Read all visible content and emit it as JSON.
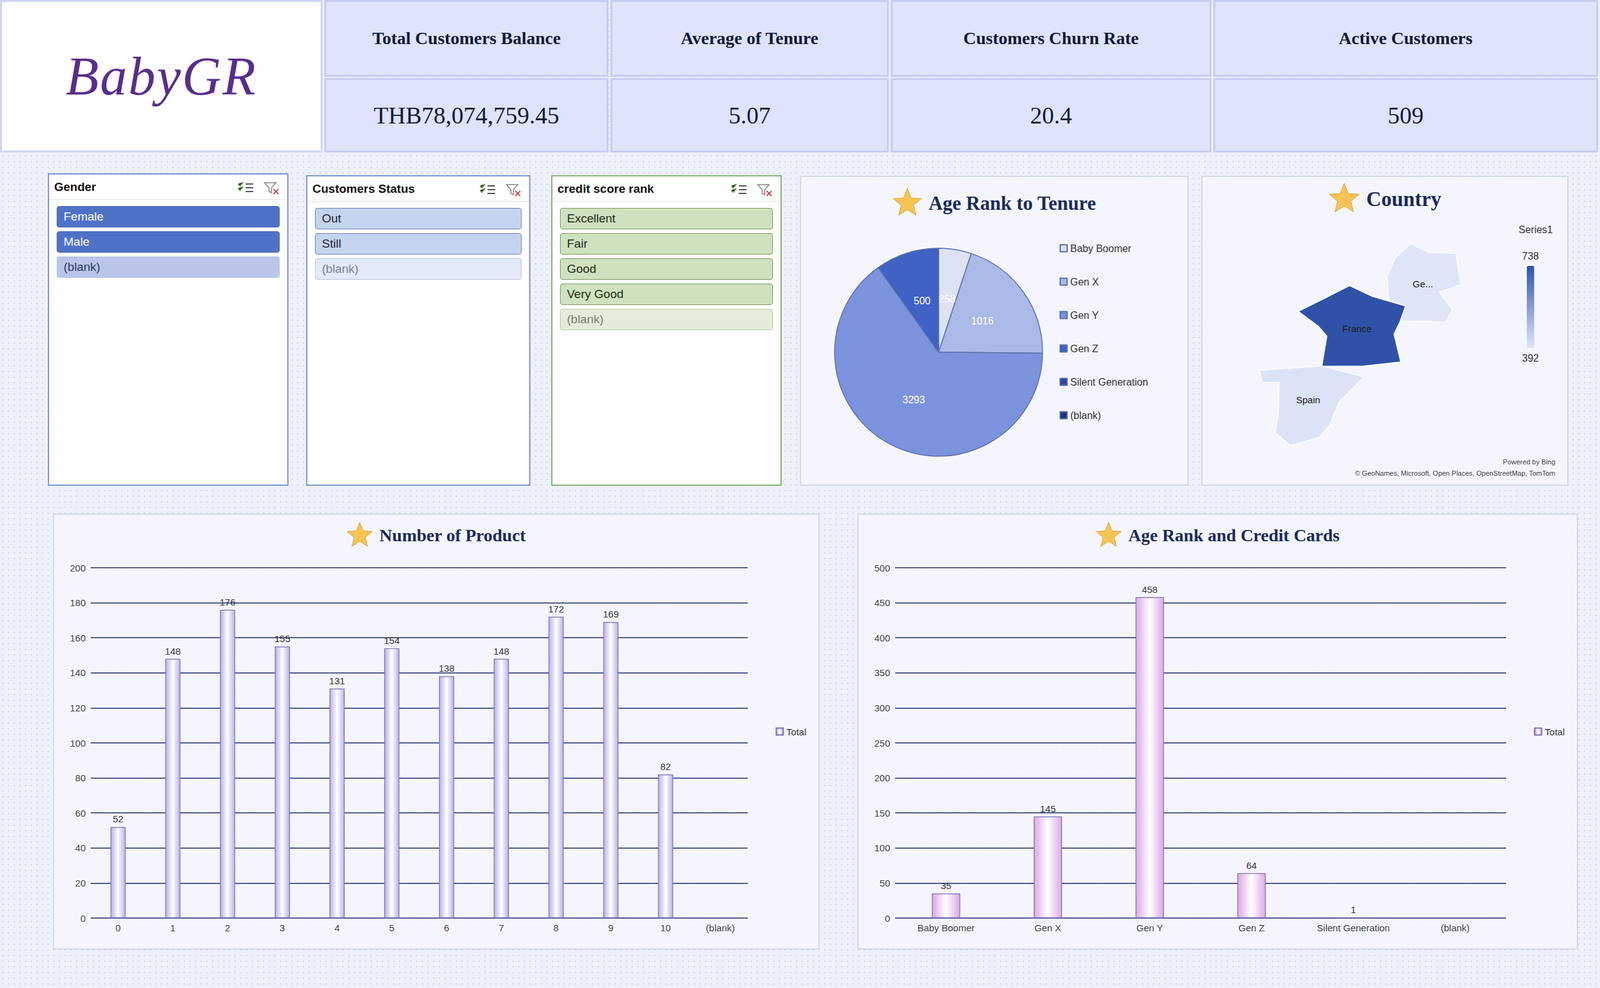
{
  "header": {
    "logo": "BabyGR"
  },
  "kpis": [
    {
      "title": "Total Customers Balance",
      "value": "THB78,074,759.45"
    },
    {
      "title": "Average of Tenure",
      "value": "5.07"
    },
    {
      "title": "Customers Churn Rate",
      "value": "20.4"
    },
    {
      "title": "Active Customers",
      "value": "509"
    }
  ],
  "slicers": [
    {
      "title": "Gender",
      "style": "blue",
      "items": [
        {
          "label": "Female",
          "selected": true
        },
        {
          "label": "Male",
          "selected": true
        },
        {
          "label": "(blank)",
          "selected": false
        }
      ]
    },
    {
      "title": "Customers Status",
      "style": "lightblue",
      "items": [
        {
          "label": "Out",
          "selected": true
        },
        {
          "label": "Still",
          "selected": true
        },
        {
          "label": "(blank)",
          "selected": false
        }
      ]
    },
    {
      "title": "credit score rank",
      "style": "green",
      "items": [
        {
          "label": "Excellent",
          "selected": true
        },
        {
          "label": "Fair",
          "selected": true
        },
        {
          "label": "Good",
          "selected": true
        },
        {
          "label": "Very Good",
          "selected": true
        },
        {
          "label": "(blank)",
          "selected": false
        }
      ]
    }
  ],
  "chart_data": [
    {
      "type": "pie",
      "title": "Age Rank to Tenure",
      "categories": [
        "Baby Boomer",
        "Gen X",
        "Gen Y",
        "Gen Z",
        "Silent Generation",
        "(blank)"
      ],
      "values": [
        258,
        1016,
        3293,
        500,
        null,
        null
      ],
      "colors": [
        "#dde2f5",
        "#aab9e6",
        "#7b92dc",
        "#3f62c4",
        "#2c4aa3",
        "#1c3480"
      ],
      "legend": "right",
      "data_labels": true
    },
    {
      "type": "map",
      "title": "Country",
      "legend_title": "Series1",
      "regions": [
        "France",
        "Ge...",
        "Spain"
      ],
      "values": [
        738,
        392,
        398
      ],
      "colorbar": {
        "range": [
          392,
          738
        ],
        "ticks": [
          392,
          738
        ]
      },
      "annotations": [
        "Powered by Bing",
        "© GeoNames, Microsoft, Open Places, OpenStreetMap, TomTom"
      ],
      "legend": "right"
    },
    {
      "type": "bar",
      "title": "Number of Product",
      "categories": [
        "0",
        "1",
        "2",
        "3",
        "4",
        "5",
        "6",
        "7",
        "8",
        "9",
        "10",
        "(blank)"
      ],
      "series": [
        {
          "name": "Total",
          "color": "#b8b0ea",
          "values": [
            52,
            148,
            176,
            155,
            131,
            154,
            138,
            148,
            172,
            169,
            82,
            null
          ]
        }
      ],
      "ylim": [
        0,
        200
      ],
      "yticks": [
        0,
        20,
        40,
        60,
        80,
        100,
        120,
        140,
        160,
        180,
        200
      ],
      "grid": true,
      "legend": "right",
      "data_labels": true
    },
    {
      "type": "bar",
      "title": "Age Rank and Credit Cards",
      "categories": [
        "Baby Boomer",
        "Gen X",
        "Gen Y",
        "Gen Z",
        "Silent Generation",
        "(blank)"
      ],
      "series": [
        {
          "name": "Total",
          "color": "#dca8e8",
          "values": [
            35,
            145,
            458,
            64,
            1,
            null
          ]
        }
      ],
      "ylim": [
        0,
        500
      ],
      "yticks": [
        0,
        50,
        100,
        150,
        200,
        250,
        300,
        350,
        400,
        450,
        500
      ],
      "grid": true,
      "legend": "right",
      "data_labels": true
    }
  ]
}
